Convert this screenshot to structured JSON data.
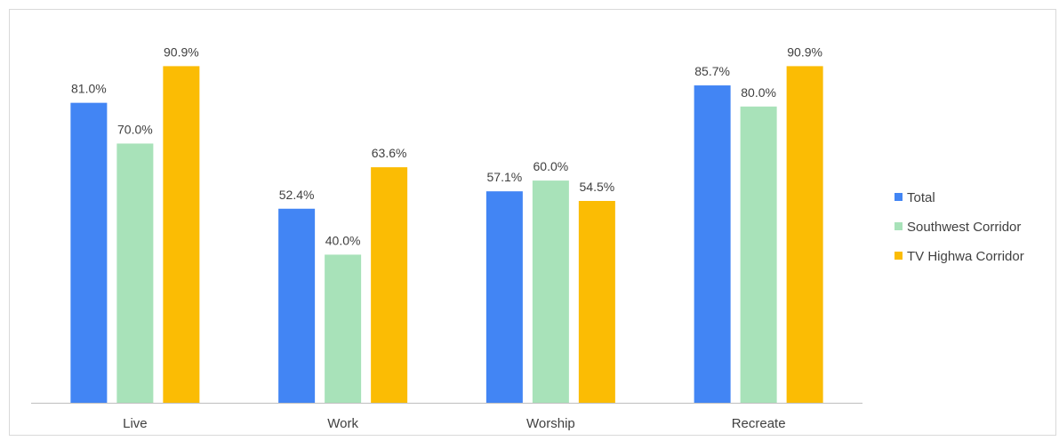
{
  "chart_data": {
    "type": "bar",
    "categories": [
      "Live",
      "Work",
      "Worship",
      "Recreate"
    ],
    "series": [
      {
        "name": "Total",
        "values": [
          81.0,
          52.4,
          57.1,
          85.7
        ],
        "labels": [
          "81.0%",
          "52.4%",
          "57.1%",
          "85.7%"
        ],
        "color": "#4285f4"
      },
      {
        "name": "Southwest Corridor",
        "values": [
          70.0,
          40.0,
          60.0,
          80.0
        ],
        "labels": [
          "70.0%",
          "40.0%",
          "60.0%",
          "80.0%"
        ],
        "color": "#a8e2b9"
      },
      {
        "name": "TV Highwa Corridor",
        "values": [
          90.9,
          63.6,
          54.5,
          90.9
        ],
        "labels": [
          "90.9%",
          "63.6%",
          "54.5%",
          "90.9%"
        ],
        "color": "#fbbc04"
      }
    ],
    "title": "",
    "xlabel": "",
    "ylabel": "",
    "ylim": [
      0,
      100
    ],
    "grid": false,
    "legend": "right",
    "axis_color": "#bfbfbf"
  }
}
